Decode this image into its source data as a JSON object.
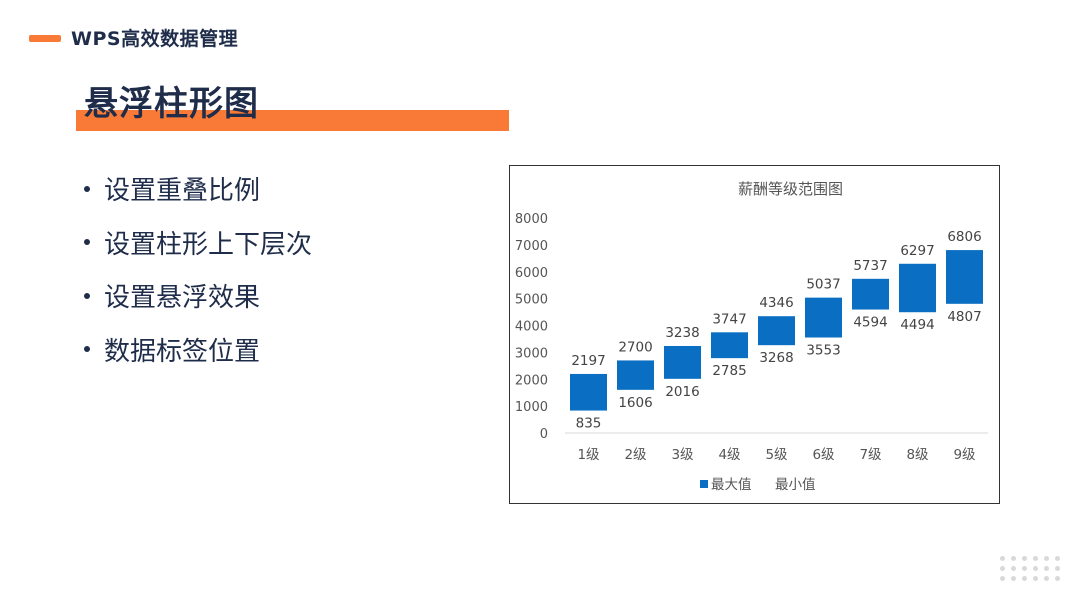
{
  "header": {
    "text": "WPS高效数据管理"
  },
  "title": "悬浮柱形图",
  "bullets": [
    "设置重叠比例",
    "设置柱形上下层次",
    "设置悬浮效果",
    "数据标签位置"
  ],
  "colors": {
    "accent": "#f97a36",
    "navy": "#1f2d4a",
    "bar": "#0a6fc2"
  },
  "chart_data": {
    "type": "bar",
    "title": "薪酬等级范围图",
    "categories": [
      "1级",
      "2级",
      "3级",
      "4级",
      "5级",
      "6级",
      "7级",
      "8级",
      "9级"
    ],
    "series": [
      {
        "name": "最大值",
        "values": [
          2197,
          2700,
          3238,
          3747,
          4346,
          5037,
          5737,
          6297,
          6806
        ]
      },
      {
        "name": "最小值",
        "values": [
          835,
          1606,
          2016,
          2785,
          3268,
          3553,
          4594,
          4494,
          4807
        ]
      }
    ],
    "ylim": [
      0,
      8000
    ],
    "yticks": [
      0,
      1000,
      2000,
      3000,
      4000,
      5000,
      6000,
      7000,
      8000
    ],
    "legend": "bottom",
    "grid": false
  }
}
